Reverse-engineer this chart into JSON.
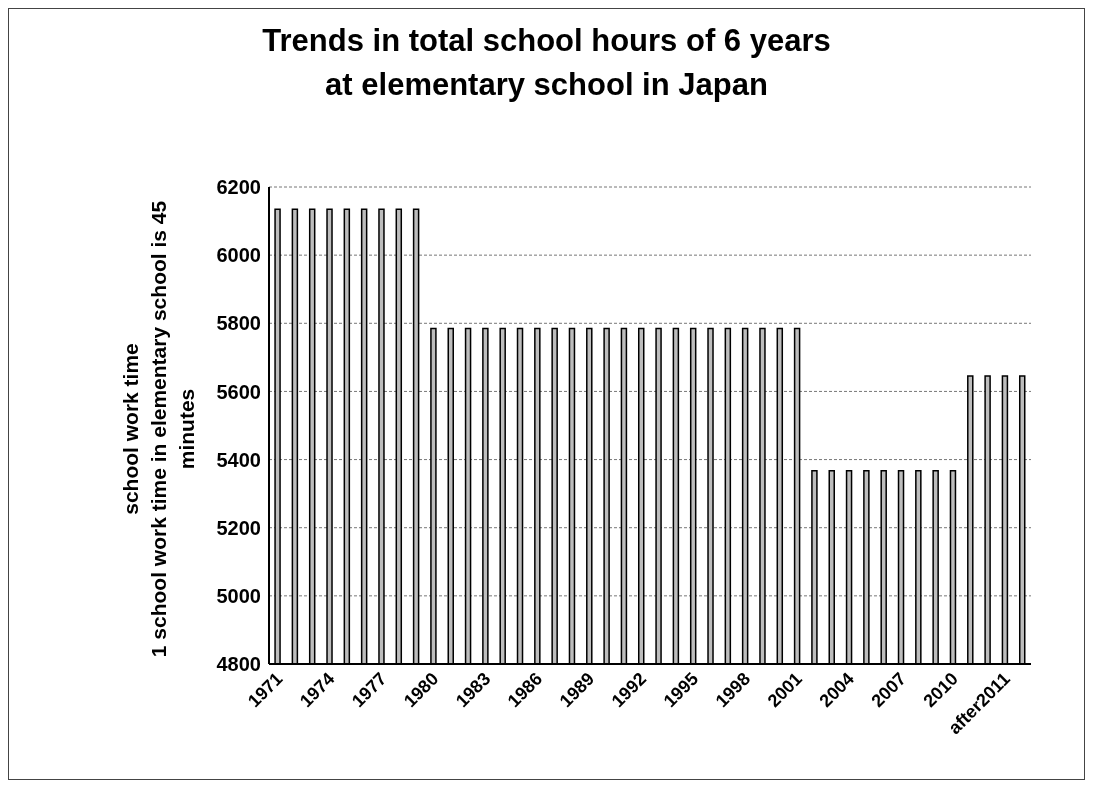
{
  "chart_data": {
    "type": "bar",
    "title": "Trends in total school hours of 6 years\nat elementary school in Japan",
    "ylabel": "school work time\n1 school work time in elementary school is 45\nminutes",
    "categories": [
      "1971",
      null,
      null,
      "1974",
      null,
      null,
      "1977",
      null,
      null,
      "1980",
      null,
      null,
      "1983",
      null,
      null,
      "1986",
      null,
      null,
      "1989",
      null,
      null,
      "1992",
      null,
      null,
      "1995",
      null,
      null,
      "1998",
      null,
      null,
      "2001",
      null,
      null,
      "2004",
      null,
      null,
      "2007",
      null,
      null,
      "2010",
      null,
      null,
      "after2011",
      null
    ],
    "values": [
      6135,
      6135,
      6135,
      6135,
      6135,
      6135,
      6135,
      6135,
      6135,
      5785,
      5785,
      5785,
      5785,
      5785,
      5785,
      5785,
      5785,
      5785,
      5785,
      5785,
      5785,
      5785,
      5785,
      5785,
      5785,
      5785,
      5785,
      5785,
      5785,
      5785,
      5785,
      5367,
      5367,
      5367,
      5367,
      5367,
      5367,
      5367,
      5367,
      5367,
      5645,
      5645,
      5645,
      5645
    ],
    "color": "#bdbdbd",
    "ylim": [
      4800,
      6200
    ],
    "yticks": [
      4800,
      5000,
      5200,
      5400,
      5600,
      5800,
      6000,
      6200
    ],
    "grid": "y",
    "legend": false
  }
}
